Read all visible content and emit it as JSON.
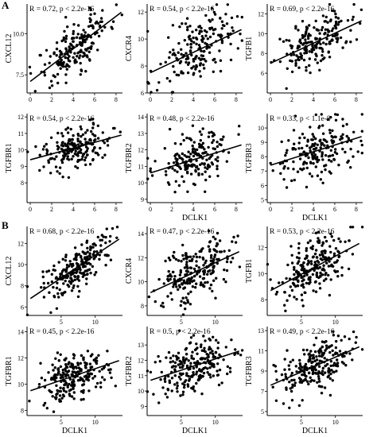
{
  "figure": {
    "panel_labels": [
      "A",
      "B"
    ],
    "x_variable": "DCLK1"
  },
  "chart_data": [
    {
      "type": "scatter",
      "group": "A",
      "ylabel": "CXCL12",
      "xlabel": "",
      "annotation": "R = 0.72, p < 2.2e-16",
      "xlim": [
        -0.3,
        8.6
      ],
      "ylim": [
        6.4,
        11.8
      ],
      "xticks": [
        0,
        2,
        4,
        6,
        8
      ],
      "yticks": [
        7.5,
        10.0
      ],
      "fit": {
        "x": [
          0,
          8.5
        ],
        "y": [
          7.1,
          11.3
        ]
      },
      "n_points": 190,
      "y_sd": 0.75,
      "r": 0.72
    },
    {
      "type": "scatter",
      "group": "A",
      "ylabel": "CXCR4",
      "xlabel": "",
      "annotation": "R = 0.54, p < 2.2e-16",
      "xlim": [
        -0.3,
        8.6
      ],
      "ylim": [
        6.0,
        12.6
      ],
      "xticks": [
        0,
        2,
        4,
        6,
        8
      ],
      "yticks": [
        6,
        8,
        10,
        12
      ],
      "fit": {
        "x": [
          0,
          8.5
        ],
        "y": [
          7.5,
          10.7
        ]
      },
      "n_points": 190,
      "y_sd": 1.2,
      "r": 0.54
    },
    {
      "type": "scatter",
      "group": "A",
      "ylabel": "TGFB1",
      "xlabel": "",
      "annotation": "R = 0.69, p < 2.2e-16",
      "xlim": [
        -0.3,
        8.6
      ],
      "ylim": [
        4.0,
        13.0
      ],
      "xticks": [
        0,
        2,
        4,
        6,
        8
      ],
      "yticks": [
        6,
        8,
        10,
        12
      ],
      "fit": {
        "x": [
          0,
          8.5
        ],
        "y": [
          7.0,
          11.3
        ]
      },
      "n_points": 190,
      "y_sd": 1.3,
      "r": 0.69
    },
    {
      "type": "scatter",
      "group": "A",
      "ylabel": "TGFBR1",
      "xlabel": "",
      "annotation": "R = 0.54, p < 2.2e-16",
      "xlim": [
        -0.3,
        8.6
      ],
      "ylim": [
        6.8,
        12.2
      ],
      "xticks": [
        0,
        2,
        4,
        6,
        8
      ],
      "yticks": [
        8,
        9,
        10,
        11,
        12
      ],
      "fit": {
        "x": [
          0,
          8.5
        ],
        "y": [
          9.4,
          10.9
        ]
      },
      "n_points": 190,
      "y_sd": 0.6,
      "r": 0.54
    },
    {
      "type": "scatter",
      "group": "A",
      "ylabel": "TGFBR2",
      "xlabel": "DCLK1",
      "annotation": "R = 0.48, p < 2.2e-16",
      "xlim": [
        -0.3,
        8.6
      ],
      "ylim": [
        8.8,
        14.2
      ],
      "xticks": [
        0,
        2,
        4,
        6,
        8
      ],
      "yticks": [
        9,
        10,
        11,
        12,
        13,
        14
      ],
      "fit": {
        "x": [
          0,
          8.5
        ],
        "y": [
          10.6,
          12.3
        ]
      },
      "n_points": 190,
      "y_sd": 0.75,
      "r": 0.48
    },
    {
      "type": "scatter",
      "group": "A",
      "ylabel": "TGFBR3",
      "xlabel": "DCLK1",
      "annotation": "R = 0.33, p < 1.1e-8",
      "xlim": [
        -0.3,
        8.6
      ],
      "ylim": [
        4.8,
        11.0
      ],
      "xticks": [
        0,
        2,
        4,
        6,
        8
      ],
      "yticks": [
        5,
        6,
        7,
        8,
        9,
        10
      ],
      "fit": {
        "x": [
          0,
          8.5
        ],
        "y": [
          7.4,
          9.4
        ]
      },
      "n_points": 190,
      "y_sd": 1.0,
      "r": 0.33
    },
    {
      "type": "scatter",
      "group": "B",
      "ylabel": "CXCL12",
      "xlabel": "",
      "annotation": "R = 0.68, p < 2.2e-16",
      "xlim": [
        0,
        14
      ],
      "ylim": [
        5.2,
        13.6
      ],
      "xticks": [
        5,
        10
      ],
      "yticks": [
        6,
        8,
        10,
        12
      ],
      "fit": {
        "x": [
          0.5,
          13.5
        ],
        "y": [
          6.8,
          12.4
        ]
      },
      "n_points": 230,
      "y_sd": 1.0,
      "r": 0.68
    },
    {
      "type": "scatter",
      "group": "B",
      "ylabel": "CXCR4",
      "xlabel": "",
      "annotation": "R = 0.47, p < 2.2e-16",
      "xlim": [
        0,
        14
      ],
      "ylim": [
        7.2,
        14.6
      ],
      "xticks": [
        5,
        10
      ],
      "yticks": [
        8,
        10,
        12,
        14
      ],
      "fit": {
        "x": [
          0.5,
          13.5
        ],
        "y": [
          9.1,
          12.5
        ]
      },
      "n_points": 230,
      "y_sd": 1.1,
      "r": 0.47
    },
    {
      "type": "scatter",
      "group": "B",
      "ylabel": "TGFB1",
      "xlabel": "",
      "annotation": "R = 0.53, p < 2.2e-16",
      "xlim": [
        0,
        14
      ],
      "ylim": [
        6.8,
        13.6
      ],
      "xticks": [
        5,
        10
      ],
      "yticks": [
        8,
        10,
        12
      ],
      "fit": {
        "x": [
          0.5,
          13.5
        ],
        "y": [
          8.7,
          12.3
        ]
      },
      "n_points": 230,
      "y_sd": 1.0,
      "r": 0.53
    },
    {
      "type": "scatter",
      "group": "B",
      "ylabel": "TGFBR1",
      "xlabel": "DCLK1",
      "annotation": "R = 0.45, p < 2.2e-16",
      "xlim": [
        0,
        14
      ],
      "ylim": [
        7.6,
        14.4
      ],
      "xticks": [
        5,
        10
      ],
      "yticks": [
        8,
        10,
        12,
        14
      ],
      "fit": {
        "x": [
          0.5,
          13.5
        ],
        "y": [
          9.5,
          11.8
        ]
      },
      "n_points": 230,
      "y_sd": 0.9,
      "r": 0.45
    },
    {
      "type": "scatter",
      "group": "B",
      "ylabel": "TGFBR2",
      "xlabel": "DCLK1",
      "annotation": "R = 0.5, p < 2.2e-16",
      "xlim": [
        0,
        14
      ],
      "ylim": [
        8.4,
        14.2
      ],
      "xticks": [
        5,
        10
      ],
      "yticks": [
        9,
        10,
        11,
        12,
        13
      ],
      "fit": {
        "x": [
          0.5,
          13.5
        ],
        "y": [
          10.7,
          12.6
        ]
      },
      "n_points": 230,
      "y_sd": 0.8,
      "r": 0.5
    },
    {
      "type": "scatter",
      "group": "B",
      "ylabel": "TGFBR3",
      "xlabel": "DCLK1",
      "annotation": "R = 0.49, p < 2.2e-16",
      "xlim": [
        0,
        14
      ],
      "ylim": [
        4.6,
        13.4
      ],
      "xticks": [
        5,
        10
      ],
      "yticks": [
        5,
        7,
        9,
        11,
        13
      ],
      "fit": {
        "x": [
          0.5,
          13.5
        ],
        "y": [
          7.6,
          11.4
        ]
      },
      "n_points": 230,
      "y_sd": 1.3,
      "r": 0.49
    }
  ]
}
